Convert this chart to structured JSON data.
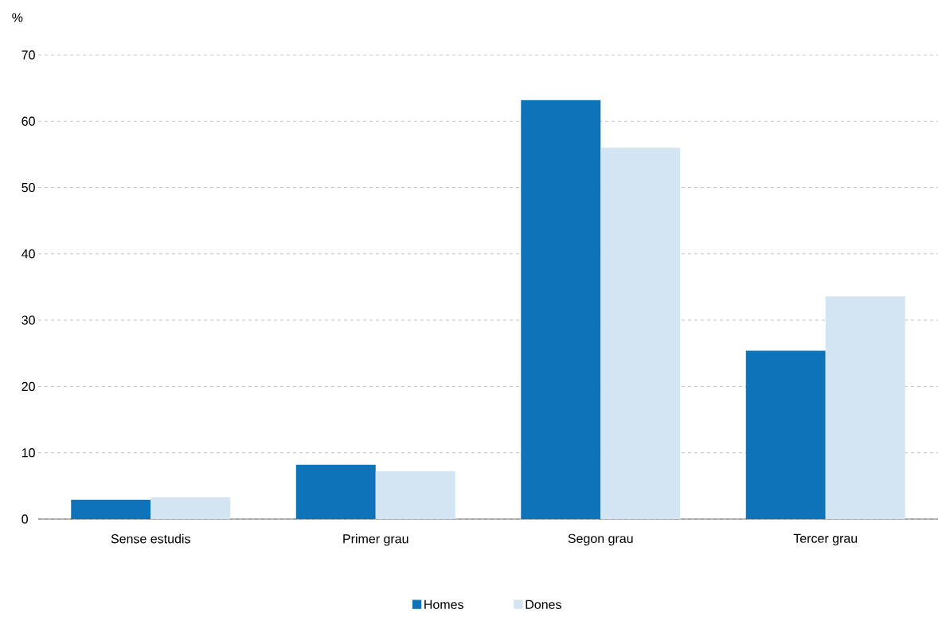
{
  "chart_data": {
    "type": "bar",
    "ylabel": "%",
    "categories": [
      "Sense estudis",
      "Primer grau",
      "Segon grau",
      "Tercer grau"
    ],
    "series": [
      {
        "name": "Homes",
        "color": "#0f73ba",
        "values": [
          2.9,
          8.2,
          63.2,
          25.4
        ]
      },
      {
        "name": "Dones",
        "color": "#d3e5f3",
        "values": [
          3.3,
          7.2,
          56.0,
          33.6
        ]
      }
    ],
    "ylim": [
      0,
      70
    ],
    "yticks": [
      0,
      10,
      20,
      30,
      40,
      50,
      60,
      70
    ],
    "grid": "y",
    "legend": "bottom"
  }
}
